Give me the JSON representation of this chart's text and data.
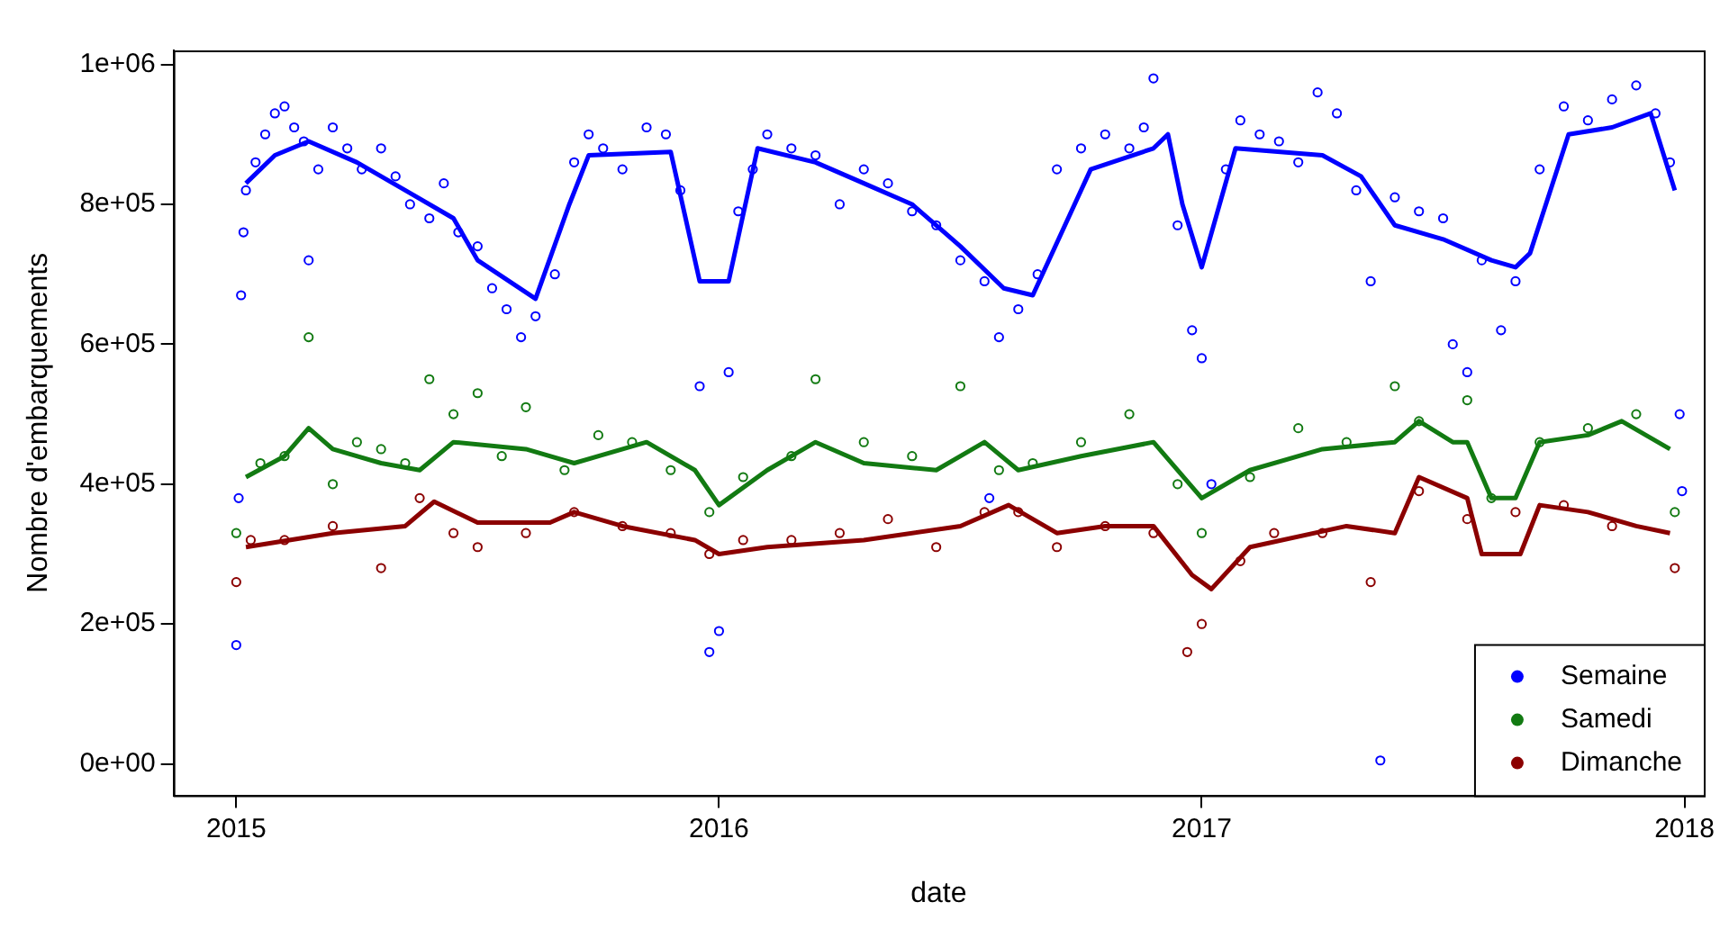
{
  "chart_data": {
    "type": "scatter",
    "xlabel": "date",
    "ylabel": "Nombre d'embarquements",
    "xlim": [
      2014.87,
      2018.04
    ],
    "xticks": [
      2015,
      2016,
      2017,
      2018
    ],
    "ylim": [
      -45000,
      1020000
    ],
    "yticks": [
      {
        "value": 0,
        "label": "0e+00"
      },
      {
        "value": 200000,
        "label": "2e+05"
      },
      {
        "value": 400000,
        "label": "4e+05"
      },
      {
        "value": 600000,
        "label": "6e+05"
      },
      {
        "value": 800000,
        "label": "8e+05"
      },
      {
        "value": 1000000,
        "label": "1e+06"
      }
    ],
    "grid": false,
    "legend": "bottom right",
    "marker": "circle",
    "series": [
      {
        "name": "Semaine",
        "color": "#0000ff",
        "x": [
          2015.0,
          2015.005,
          2015.01,
          2015.015,
          2015.02,
          2015.04,
          2015.06,
          2015.08,
          2015.1,
          2015.12,
          2015.14,
          2015.15,
          2015.17,
          2015.2,
          2015.23,
          2015.26,
          2015.3,
          2015.33,
          2015.36,
          2015.4,
          2015.43,
          2015.46,
          2015.5,
          2015.53,
          2015.56,
          2015.59,
          2015.62,
          2015.66,
          2015.7,
          2015.73,
          2015.76,
          2015.8,
          2015.85,
          2015.89,
          2015.92,
          2015.96,
          2015.98,
          2016.0,
          2016.02,
          2016.04,
          2016.07,
          2016.1,
          2016.15,
          2016.2,
          2016.25,
          2016.3,
          2016.35,
          2016.4,
          2016.45,
          2016.5,
          2016.55,
          2016.56,
          2016.58,
          2016.62,
          2016.66,
          2016.7,
          2016.75,
          2016.8,
          2016.85,
          2016.88,
          2016.9,
          2016.95,
          2016.98,
          2017.0,
          2017.02,
          2017.05,
          2017.08,
          2017.12,
          2017.16,
          2017.2,
          2017.24,
          2017.28,
          2017.32,
          2017.35,
          2017.37,
          2017.4,
          2017.45,
          2017.5,
          2017.52,
          2017.55,
          2017.58,
          2017.62,
          2017.65,
          2017.7,
          2017.75,
          2017.8,
          2017.85,
          2017.9,
          2017.94,
          2017.97,
          2017.99,
          2017.995
        ],
        "values": [
          170000,
          380000,
          670000,
          760000,
          820000,
          860000,
          900000,
          930000,
          940000,
          910000,
          890000,
          720000,
          850000,
          910000,
          880000,
          850000,
          880000,
          840000,
          800000,
          780000,
          830000,
          760000,
          740000,
          680000,
          650000,
          610000,
          640000,
          700000,
          860000,
          900000,
          880000,
          850000,
          910000,
          900000,
          820000,
          540000,
          160000,
          190000,
          560000,
          790000,
          850000,
          900000,
          880000,
          870000,
          800000,
          850000,
          830000,
          790000,
          770000,
          720000,
          690000,
          380000,
          610000,
          650000,
          700000,
          850000,
          880000,
          900000,
          880000,
          910000,
          980000,
          770000,
          620000,
          580000,
          400000,
          850000,
          920000,
          900000,
          890000,
          860000,
          960000,
          930000,
          820000,
          690000,
          5000,
          810000,
          790000,
          780000,
          600000,
          560000,
          720000,
          620000,
          690000,
          850000,
          940000,
          920000,
          950000,
          970000,
          930000,
          860000,
          500000,
          390000
        ]
      },
      {
        "name": "Samedi",
        "color": "#127a12",
        "x": [
          2015.0,
          2015.05,
          2015.1,
          2015.15,
          2015.2,
          2015.25,
          2015.3,
          2015.35,
          2015.4,
          2015.45,
          2015.5,
          2015.55,
          2015.6,
          2015.68,
          2015.75,
          2015.82,
          2015.9,
          2015.98,
          2016.05,
          2016.15,
          2016.2,
          2016.3,
          2016.4,
          2016.5,
          2016.58,
          2016.65,
          2016.75,
          2016.85,
          2016.95,
          2017.0,
          2017.1,
          2017.2,
          2017.3,
          2017.4,
          2017.45,
          2017.55,
          2017.6,
          2017.7,
          2017.8,
          2017.9,
          2017.98
        ],
        "values": [
          330000,
          430000,
          440000,
          610000,
          400000,
          460000,
          450000,
          430000,
          550000,
          500000,
          530000,
          440000,
          510000,
          420000,
          470000,
          460000,
          420000,
          360000,
          410000,
          440000,
          550000,
          460000,
          440000,
          540000,
          420000,
          430000,
          460000,
          500000,
          400000,
          330000,
          410000,
          480000,
          460000,
          540000,
          490000,
          520000,
          380000,
          460000,
          480000,
          500000,
          360000
        ]
      },
      {
        "name": "Dimanche",
        "color": "#8b0000",
        "x": [
          2015.0,
          2015.03,
          2015.1,
          2015.2,
          2015.3,
          2015.38,
          2015.45,
          2015.5,
          2015.6,
          2015.7,
          2015.8,
          2015.9,
          2015.98,
          2016.05,
          2016.15,
          2016.25,
          2016.35,
          2016.45,
          2016.55,
          2016.62,
          2016.7,
          2016.8,
          2016.9,
          2016.97,
          2017.0,
          2017.08,
          2017.15,
          2017.25,
          2017.35,
          2017.45,
          2017.55,
          2017.65,
          2017.75,
          2017.85,
          2017.98
        ],
        "values": [
          260000,
          320000,
          320000,
          340000,
          280000,
          380000,
          330000,
          310000,
          330000,
          360000,
          340000,
          330000,
          300000,
          320000,
          320000,
          330000,
          350000,
          310000,
          360000,
          360000,
          310000,
          340000,
          330000,
          160000,
          200000,
          290000,
          330000,
          330000,
          260000,
          390000,
          350000,
          360000,
          370000,
          340000,
          280000
        ]
      },
      {
        "type": "line",
        "marker": "none",
        "color": "#0000ff",
        "x": [
          2015.02,
          2015.08,
          2015.15,
          2015.25,
          2015.35,
          2015.45,
          2015.5,
          2015.62,
          2015.69,
          2015.73,
          2015.9,
          2015.96,
          2016.02,
          2016.08,
          2016.2,
          2016.3,
          2016.4,
          2016.5,
          2016.59,
          2016.65,
          2016.77,
          2016.9,
          2016.93,
          2016.96,
          2017.0,
          2017.07,
          2017.25,
          2017.33,
          2017.4,
          2017.5,
          2017.6,
          2017.65,
          2017.68,
          2017.76,
          2017.85,
          2017.93,
          2017.98
        ],
        "values": [
          830000,
          870000,
          890000,
          860000,
          820000,
          780000,
          720000,
          665000,
          800000,
          870000,
          875000,
          690000,
          690000,
          880000,
          860000,
          830000,
          800000,
          740000,
          680000,
          670000,
          850000,
          880000,
          900000,
          800000,
          710000,
          880000,
          870000,
          840000,
          770000,
          750000,
          720000,
          710000,
          730000,
          900000,
          910000,
          930000,
          820000
        ]
      },
      {
        "type": "line",
        "marker": "none",
        "color": "#127a12",
        "x": [
          2015.02,
          2015.1,
          2015.15,
          2015.2,
          2015.3,
          2015.38,
          2015.45,
          2015.6,
          2015.7,
          2015.85,
          2015.95,
          2016.0,
          2016.1,
          2016.2,
          2016.3,
          2016.45,
          2016.55,
          2016.62,
          2016.75,
          2016.9,
          2017.0,
          2017.1,
          2017.25,
          2017.4,
          2017.45,
          2017.52,
          2017.55,
          2017.6,
          2017.65,
          2017.7,
          2017.8,
          2017.87,
          2017.97
        ],
        "values": [
          410000,
          440000,
          480000,
          450000,
          430000,
          420000,
          460000,
          450000,
          430000,
          460000,
          420000,
          370000,
          420000,
          460000,
          430000,
          420000,
          460000,
          420000,
          440000,
          460000,
          380000,
          420000,
          450000,
          460000,
          490000,
          460000,
          460000,
          380000,
          380000,
          460000,
          470000,
          490000,
          450000
        ]
      },
      {
        "type": "line",
        "marker": "none",
        "color": "#8b0000",
        "x": [
          2015.02,
          2015.2,
          2015.35,
          2015.41,
          2015.5,
          2015.65,
          2015.7,
          2015.8,
          2015.95,
          2016.0,
          2016.1,
          2016.3,
          2016.5,
          2016.6,
          2016.7,
          2016.8,
          2016.9,
          2016.98,
          2017.02,
          2017.1,
          2017.3,
          2017.4,
          2017.45,
          2017.55,
          2017.58,
          2017.66,
          2017.7,
          2017.8,
          2017.9,
          2017.97
        ],
        "values": [
          310000,
          330000,
          340000,
          375000,
          345000,
          345000,
          360000,
          340000,
          320000,
          300000,
          310000,
          320000,
          340000,
          370000,
          330000,
          340000,
          340000,
          270000,
          250000,
          310000,
          340000,
          330000,
          410000,
          380000,
          300000,
          300000,
          370000,
          360000,
          340000,
          330000
        ]
      }
    ]
  }
}
